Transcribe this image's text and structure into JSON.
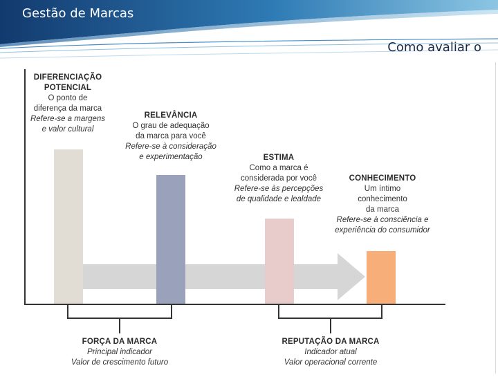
{
  "slide": {
    "title": "Gestão de Marcas",
    "subtitle": "Como avaliar o"
  },
  "colors": {
    "header_dark": "#123a6e",
    "header_mid": "#2f7bb5",
    "header_light": "#8cc6e3",
    "arrow": "#d6d6d6",
    "pillar_diferenciacao": "#e2ddd4",
    "pillar_relevancia": "#9aa2bb",
    "pillar_estima": "#e8cccc",
    "pillar_conhecimento": "#f8ae78",
    "axis": "#333333"
  },
  "pillars": [
    {
      "key": "diferenciacao",
      "heading_lines": [
        "DIFERENCIAÇÃO",
        "POTENCIAL"
      ],
      "desc_lines": [
        "O ponto de",
        "diferença da marca"
      ],
      "note_lines": [
        "Refere-se a margens",
        "e valor cultural"
      ]
    },
    {
      "key": "relevancia",
      "heading_lines": [
        "RELEVÂNCIA"
      ],
      "desc_lines": [
        "O grau de adequação",
        "da marca para você"
      ],
      "note_lines": [
        "Refere-se à consideração",
        "e experimentação"
      ]
    },
    {
      "key": "estima",
      "heading_lines": [
        "ESTIMA"
      ],
      "desc_lines": [
        "Como a marca é",
        "considerada por você"
      ],
      "note_lines": [
        "Refere-se às percepções",
        "de qualidade e lealdade"
      ]
    },
    {
      "key": "conhecimento",
      "heading_lines": [
        "CONHECIMENTO"
      ],
      "desc_lines": [
        "Um íntimo",
        "conhecimento",
        "da marca"
      ],
      "note_lines": [
        "Refere-se à consciência e",
        "experiência do consumidor"
      ]
    }
  ],
  "groups": [
    {
      "heading": "FORÇA DA MARCA",
      "desc": "Principal indicador",
      "note": "Valor de crescimento futuro"
    },
    {
      "heading": "REPUTAÇÃO DA MARCA",
      "desc": "Indicador atual",
      "note": "Valor operacional corrente"
    }
  ]
}
